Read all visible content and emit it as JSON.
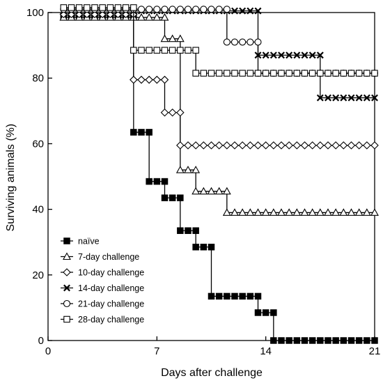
{
  "chart_data": {
    "type": "line",
    "step": "post",
    "title": "",
    "xlabel": "Days after challenge",
    "ylabel": "Surviving animals (%)",
    "xlim": [
      0,
      21
    ],
    "ylim": [
      0,
      100
    ],
    "x_ticks": [
      0,
      7,
      14,
      21
    ],
    "y_ticks": [
      0,
      20,
      40,
      60,
      80,
      100
    ],
    "grid": false,
    "legend_position": "bottom-left",
    "series": [
      {
        "name": "naïve",
        "marker": "filled-square",
        "color": "#000000",
        "points": [
          [
            1,
            99
          ],
          [
            5.5,
            99
          ],
          [
            5.5,
            63.5
          ],
          [
            6.5,
            63.5
          ],
          [
            6.5,
            48.5
          ],
          [
            7.5,
            48.5
          ],
          [
            7.5,
            43.5
          ],
          [
            8.5,
            43.5
          ],
          [
            8.5,
            33.5
          ],
          [
            9.5,
            33.5
          ],
          [
            9.5,
            28.5
          ],
          [
            10.5,
            28.5
          ],
          [
            10.5,
            13.5
          ],
          [
            13.5,
            13.5
          ],
          [
            13.5,
            8.5
          ],
          [
            14.5,
            8.5
          ],
          [
            14.5,
            0
          ],
          [
            21,
            0
          ]
        ]
      },
      {
        "name": "7-day challenge",
        "marker": "open-triangle",
        "color": "#000000",
        "points": [
          [
            1,
            98.5
          ],
          [
            7.5,
            98.5
          ],
          [
            7.5,
            92
          ],
          [
            8.5,
            92
          ],
          [
            8.5,
            52
          ],
          [
            9.5,
            52
          ],
          [
            9.5,
            45.5
          ],
          [
            11.5,
            45.5
          ],
          [
            11.5,
            39
          ],
          [
            21,
            39
          ]
        ]
      },
      {
        "name": "10-day challenge",
        "marker": "open-diamond",
        "color": "#000000",
        "points": [
          [
            1,
            99.5
          ],
          [
            5.5,
            99.5
          ],
          [
            5.5,
            79.5
          ],
          [
            7.5,
            79.5
          ],
          [
            7.5,
            69.5
          ],
          [
            8.5,
            69.5
          ],
          [
            8.5,
            59.5
          ],
          [
            21,
            59.5
          ]
        ]
      },
      {
        "name": "14-day challenge",
        "marker": "cross",
        "color": "#000000",
        "points": [
          [
            1,
            100.5
          ],
          [
            13.5,
            100.5
          ],
          [
            13.5,
            87
          ],
          [
            17.5,
            87
          ],
          [
            17.5,
            74
          ],
          [
            21,
            74
          ]
        ]
      },
      {
        "name": "21-day challenge",
        "marker": "open-circle",
        "color": "#000000",
        "points": [
          [
            1,
            101
          ],
          [
            11.5,
            101
          ],
          [
            11.5,
            91
          ],
          [
            13.5,
            91
          ],
          [
            13.5,
            81.5
          ],
          [
            21,
            81.5
          ]
        ]
      },
      {
        "name": "28-day challenge",
        "marker": "open-square",
        "color": "#000000",
        "points": [
          [
            1,
            101.5
          ],
          [
            5.5,
            101.5
          ],
          [
            5.5,
            88.5
          ],
          [
            9.5,
            88.5
          ],
          [
            9.5,
            81.5
          ],
          [
            21,
            81.5
          ]
        ]
      }
    ]
  }
}
